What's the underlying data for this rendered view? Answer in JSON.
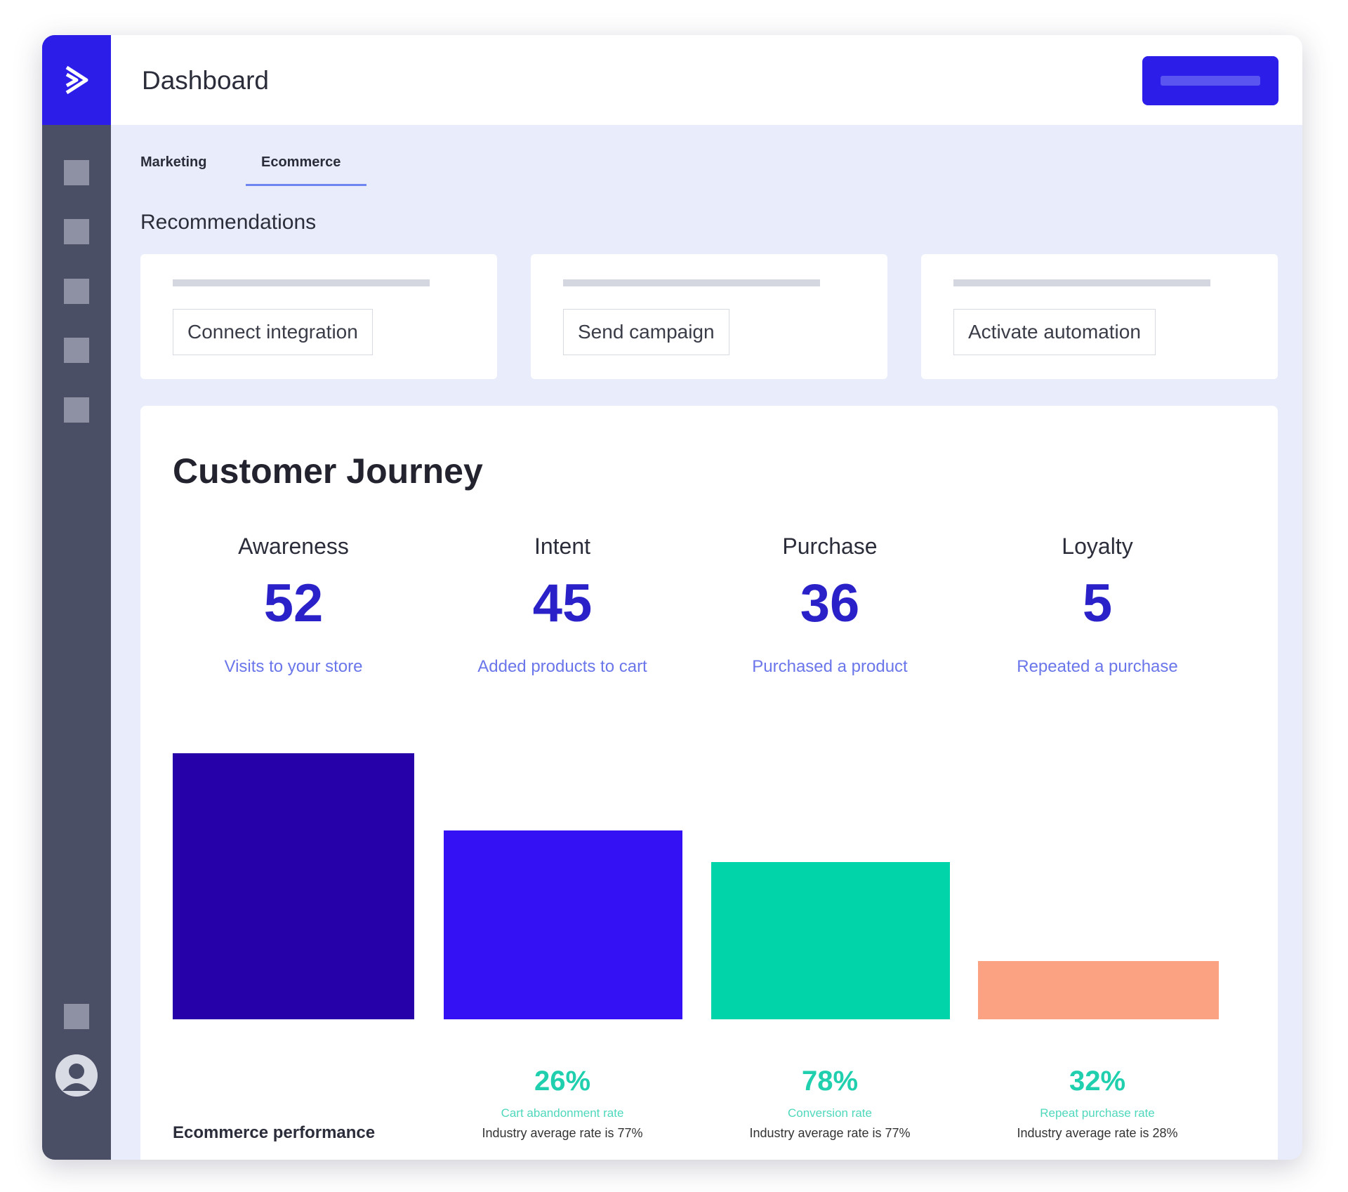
{
  "header": {
    "title": "Dashboard"
  },
  "tabs": [
    {
      "label": "Marketing"
    },
    {
      "label": "Ecommerce"
    }
  ],
  "active_tab": "Ecommerce",
  "recommendations": {
    "heading": "Recommendations",
    "cards": [
      {
        "button": "Connect integration"
      },
      {
        "button": "Send campaign"
      },
      {
        "button": "Activate automation"
      }
    ]
  },
  "journey": {
    "title": "Customer Journey",
    "stages": [
      {
        "label": "Awareness",
        "value": "52",
        "desc": "Visits to your store",
        "bar_level": 1.0,
        "color": "#2600a8"
      },
      {
        "label": "Intent",
        "value": "45",
        "desc": "Added products to cart",
        "bar_level": 0.71,
        "color": "#3410f5"
      },
      {
        "label": "Purchase",
        "value": "36",
        "desc": "Purchased a product",
        "bar_level": 0.59,
        "color": "#00d4a8"
      },
      {
        "label": "Loyalty",
        "value": "5",
        "desc": "Repeated a purchase",
        "bar_level": 0.22,
        "color": "#fba282"
      }
    ],
    "performance_label": "Ecommerce performance",
    "metrics": [
      {
        "value": "26%",
        "label": "Cart abandonment rate",
        "industry": "Industry average rate is 77%"
      },
      {
        "value": "78%",
        "label": "Conversion rate",
        "industry": "Industry average rate is 77%"
      },
      {
        "value": "32%",
        "label": "Repeat purchase rate",
        "industry": "Industry average rate is 28%"
      }
    ]
  }
}
